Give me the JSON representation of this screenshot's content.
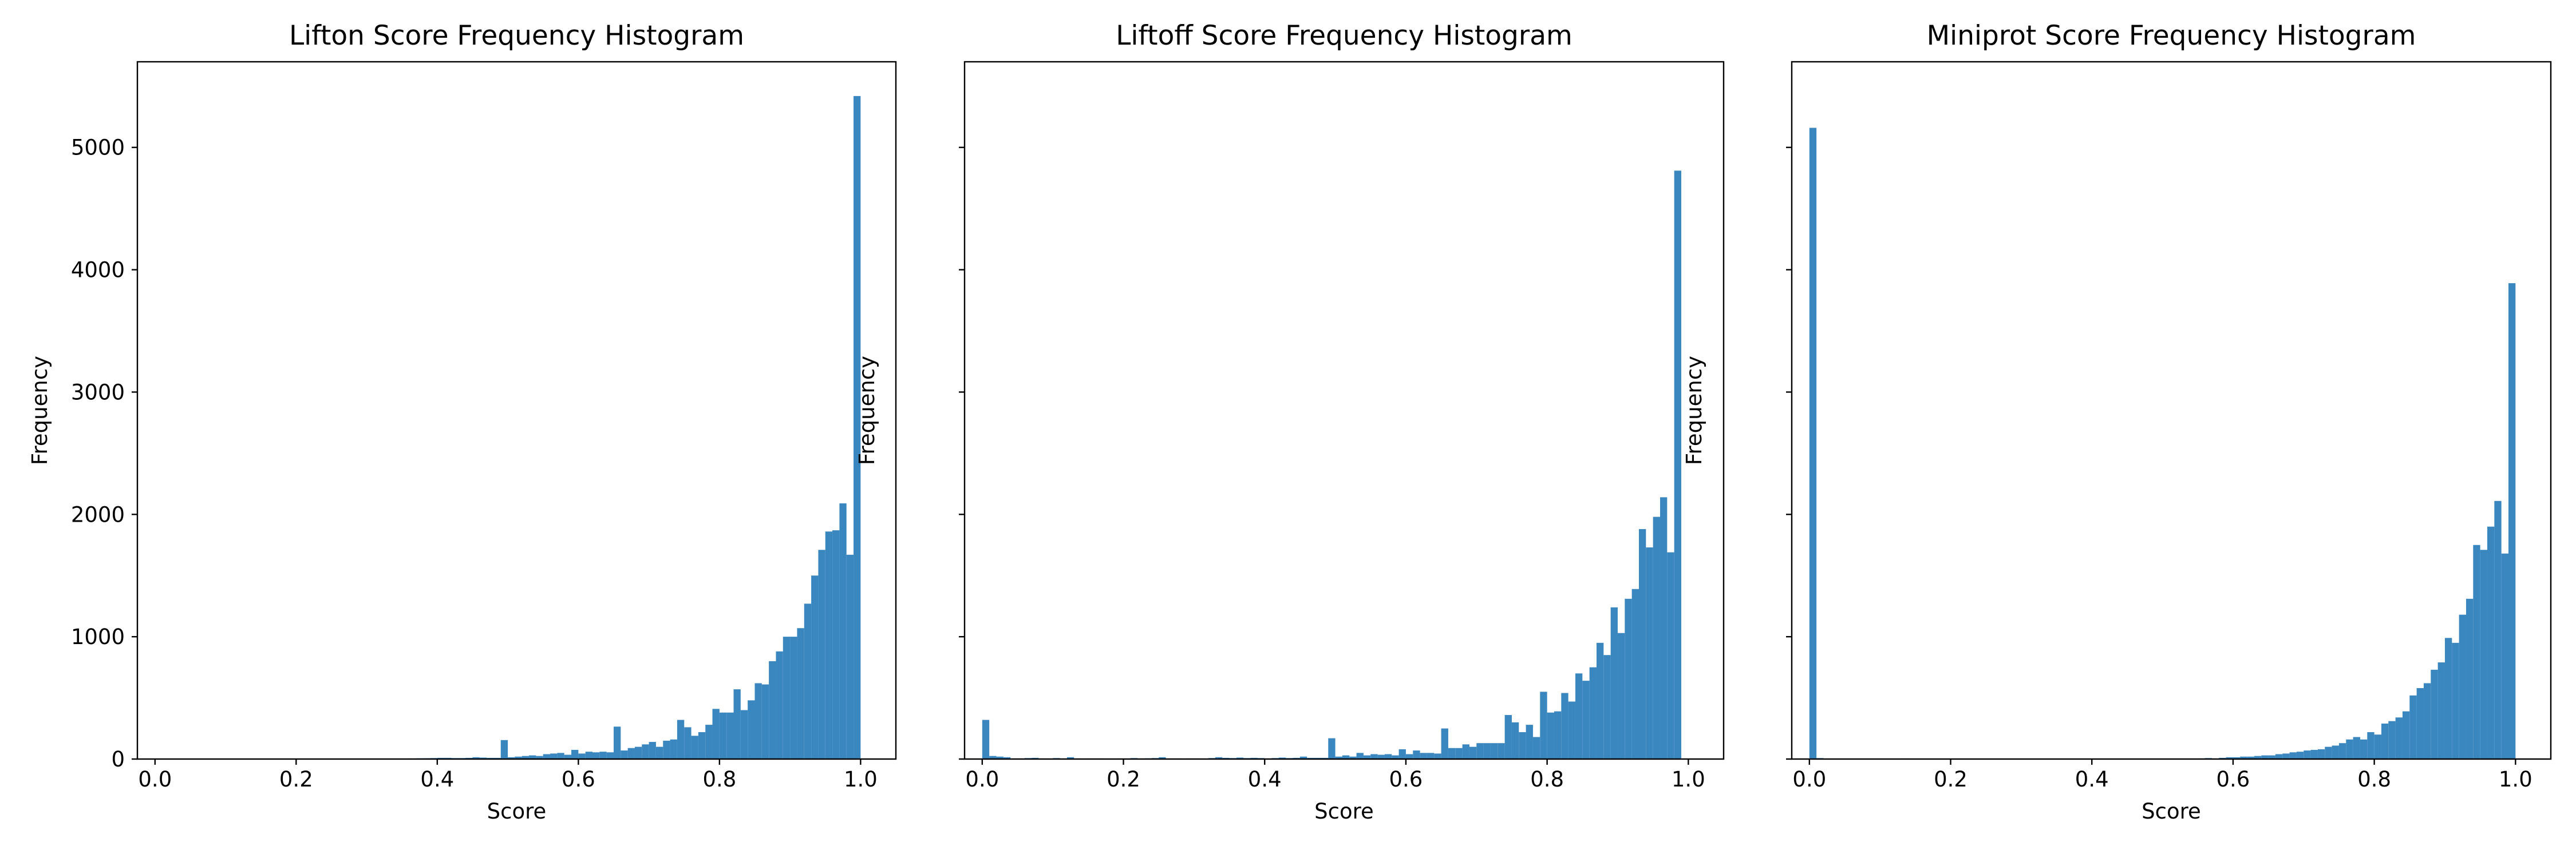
{
  "figure": {
    "background": "#ffffff",
    "bar_color": "#3a87c0",
    "shared_y_axis": true
  },
  "chart_data": [
    {
      "type": "bar",
      "title": "Lifton Score Frequency Histogram",
      "xlabel": "Score",
      "ylabel": "Frequency",
      "xlim": [
        -0.025,
        1.05
      ],
      "ylim": [
        0,
        5700
      ],
      "xticks": [
        0.0,
        0.2,
        0.4,
        0.6,
        0.8,
        1.0
      ],
      "xtick_labels": [
        "0.0",
        "0.2",
        "0.4",
        "0.6",
        "0.8",
        "1.0"
      ],
      "yticks": [
        0,
        1000,
        2000,
        3000,
        4000,
        5000
      ],
      "ytick_labels": [
        "0",
        "1000",
        "2000",
        "3000",
        "4000",
        "5000"
      ],
      "show_ytick_labels": true,
      "grid": false,
      "bins": {
        "start": 0.0,
        "width": 0.01,
        "count": 100
      },
      "values": [
        2,
        1,
        1,
        1,
        1,
        0,
        1,
        1,
        1,
        1,
        1,
        1,
        1,
        1,
        1,
        1,
        1,
        1,
        1,
        1,
        2,
        2,
        1,
        1,
        1,
        2,
        2,
        2,
        2,
        3,
        3,
        3,
        3,
        3,
        4,
        4,
        5,
        6,
        7,
        8,
        10,
        10,
        8,
        8,
        10,
        15,
        12,
        10,
        10,
        155,
        15,
        20,
        25,
        30,
        25,
        40,
        45,
        50,
        35,
        75,
        45,
        60,
        55,
        60,
        55,
        265,
        70,
        90,
        100,
        120,
        140,
        100,
        150,
        160,
        320,
        260,
        190,
        220,
        280,
        410,
        380,
        380,
        570,
        400,
        480,
        620,
        610,
        800,
        880,
        1000,
        1000,
        1070,
        1270,
        1500,
        1710,
        1860,
        1870,
        2090,
        1670,
        5420
      ]
    },
    {
      "type": "bar",
      "title": "Liftoff Score Frequency Histogram",
      "xlabel": "Score",
      "ylabel": "Frequency",
      "xlim": [
        -0.025,
        1.05
      ],
      "ylim": [
        0,
        5700
      ],
      "xticks": [
        0.0,
        0.2,
        0.4,
        0.6,
        0.8,
        1.0
      ],
      "xtick_labels": [
        "0.0",
        "0.2",
        "0.4",
        "0.6",
        "0.8",
        "1.0"
      ],
      "yticks": [
        0,
        1000,
        2000,
        3000,
        4000,
        5000
      ],
      "ytick_labels": [
        "0",
        "1000",
        "2000",
        "3000",
        "4000",
        "5000"
      ],
      "show_ytick_labels": false,
      "grid": false,
      "bins": {
        "start": 0.0,
        "width": 0.01,
        "count": 100
      },
      "values": [
        320,
        25,
        20,
        15,
        5,
        5,
        8,
        10,
        5,
        4,
        8,
        5,
        15,
        5,
        4,
        5,
        5,
        4,
        3,
        5,
        5,
        8,
        5,
        6,
        8,
        15,
        5,
        5,
        4,
        5,
        5,
        4,
        8,
        15,
        10,
        8,
        12,
        8,
        10,
        8,
        5,
        8,
        12,
        8,
        10,
        20,
        10,
        10,
        10,
        170,
        20,
        30,
        20,
        50,
        30,
        40,
        35,
        40,
        30,
        80,
        40,
        70,
        50,
        50,
        45,
        250,
        90,
        90,
        120,
        100,
        130,
        130,
        130,
        130,
        360,
        300,
        220,
        280,
        180,
        550,
        380,
        390,
        540,
        470,
        700,
        640,
        750,
        950,
        850,
        1240,
        1030,
        1310,
        1390,
        1880,
        1730,
        1980,
        2140,
        1690,
        4810,
        0
      ]
    },
    {
      "type": "bar",
      "title": "Miniprot Score Frequency Histogram",
      "xlabel": "Score",
      "ylabel": "Frequency",
      "xlim": [
        -0.025,
        1.05
      ],
      "ylim": [
        0,
        5700
      ],
      "xticks": [
        0.0,
        0.2,
        0.4,
        0.6,
        0.8,
        1.0
      ],
      "xtick_labels": [
        "0.0",
        "0.2",
        "0.4",
        "0.6",
        "0.8",
        "1.0"
      ],
      "yticks": [
        0,
        1000,
        2000,
        3000,
        4000,
        5000
      ],
      "ytick_labels": [
        "0",
        "1000",
        "2000",
        "3000",
        "4000",
        "5000"
      ],
      "show_ytick_labels": false,
      "grid": false,
      "bins": {
        "start": 0.0,
        "width": 0.01,
        "count": 100
      },
      "values": [
        5160,
        8,
        3,
        2,
        2,
        1,
        1,
        1,
        1,
        1,
        1,
        1,
        1,
        5,
        1,
        1,
        1,
        1,
        1,
        1,
        1,
        1,
        1,
        1,
        1,
        1,
        1,
        1,
        1,
        1,
        1,
        1,
        1,
        1,
        1,
        1,
        1,
        1,
        1,
        1,
        1,
        1,
        1,
        1,
        1,
        1,
        1,
        1,
        1,
        1,
        1,
        1,
        1,
        1,
        2,
        5,
        8,
        5,
        10,
        15,
        15,
        20,
        20,
        25,
        30,
        30,
        40,
        45,
        55,
        60,
        70,
        75,
        80,
        100,
        110,
        130,
        160,
        180,
        160,
        220,
        200,
        290,
        310,
        340,
        390,
        520,
        580,
        620,
        730,
        790,
        990,
        950,
        1180,
        1310,
        1750,
        1710,
        1900,
        2110,
        1680,
        3890
      ]
    }
  ]
}
